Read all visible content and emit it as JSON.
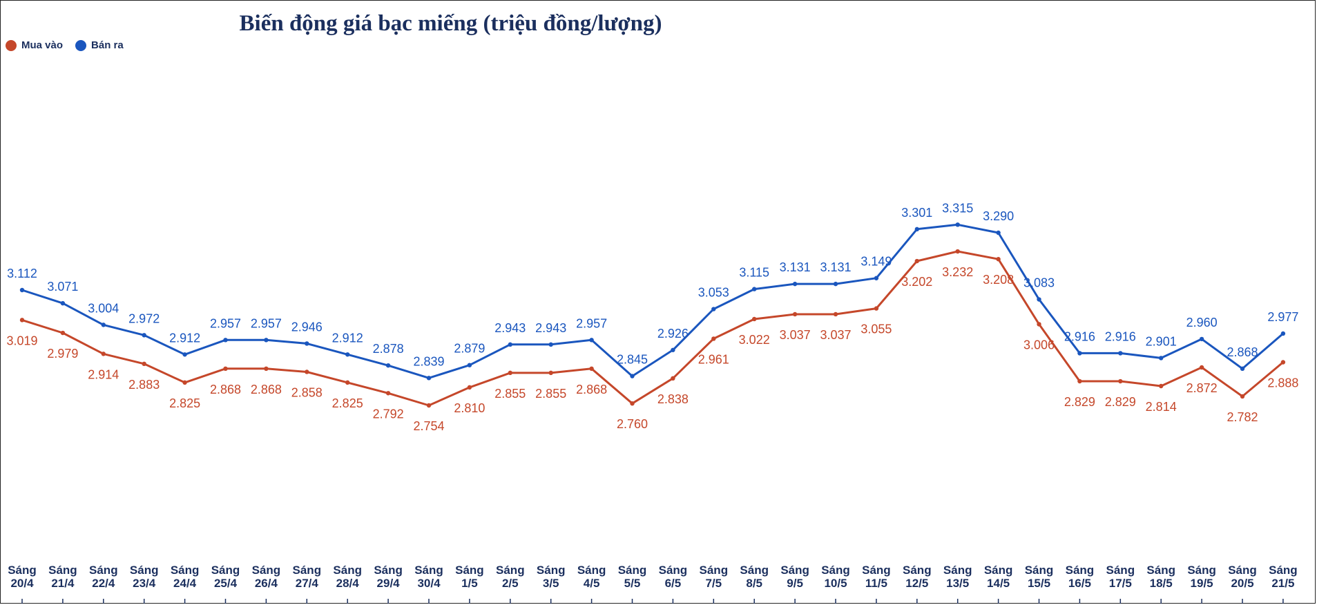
{
  "chart_data": {
    "type": "line",
    "title": "Biến động giá bạc miếng (triệu đồng/lượng)",
    "categories": [
      "Sáng|20/4",
      "Sáng|21/4",
      "Sáng|22/4",
      "Sáng|23/4",
      "Sáng|24/4",
      "Sáng|25/4",
      "Sáng|26/4",
      "Sáng|27/4",
      "Sáng|28/4",
      "Sáng|29/4",
      "Sáng|30/4",
      "Sáng|1/5",
      "Sáng|2/5",
      "Sáng|3/5",
      "Sáng|4/5",
      "Sáng|5/5",
      "Sáng|6/5",
      "Sáng|7/5",
      "Sáng|8/5",
      "Sáng|9/5",
      "Sáng|10/5",
      "Sáng|11/5",
      "Sáng|12/5",
      "Sáng|13/5",
      "Sáng|14/5",
      "Sáng|15/5",
      "Sáng|16/5",
      "Sáng|17/5",
      "Sáng|18/5",
      "Sáng|19/5",
      "Sáng|20/5",
      "Sáng|21/5"
    ],
    "series": [
      {
        "name": "Mua vào",
        "color": "#c5472a",
        "values": [
          3.019,
          2.979,
          2.914,
          2.883,
          2.825,
          2.868,
          2.868,
          2.858,
          2.825,
          2.792,
          2.754,
          2.81,
          2.855,
          2.855,
          2.868,
          2.76,
          2.838,
          2.961,
          3.022,
          3.037,
          3.037,
          3.055,
          3.202,
          3.232,
          3.208,
          3.006,
          2.829,
          2.829,
          2.814,
          2.872,
          2.782,
          2.888
        ],
        "labels": [
          "3.019",
          "2.979",
          "2.914",
          "2.883",
          "2.825",
          "2.868",
          "2.868",
          "2.858",
          "2.825",
          "2.792",
          "2.754",
          "2.810",
          "2.855",
          "2.855",
          "2.868",
          "2.760",
          "2.838",
          "2.961",
          "3.022",
          "3.037",
          "3.037",
          "3.055",
          "3.202",
          "3.232",
          "3.208",
          "3.006",
          "2.829",
          "2.829",
          "2.814",
          "2.872",
          "2.782",
          "2.888"
        ]
      },
      {
        "name": "Bán ra",
        "color": "#1a56be",
        "values": [
          3.112,
          3.071,
          3.004,
          2.972,
          2.912,
          2.957,
          2.957,
          2.946,
          2.912,
          2.878,
          2.839,
          2.879,
          2.943,
          2.943,
          2.957,
          2.845,
          2.926,
          3.053,
          3.115,
          3.131,
          3.131,
          3.149,
          3.301,
          3.315,
          3.29,
          3.083,
          2.916,
          2.916,
          2.901,
          2.96,
          2.868,
          2.977
        ],
        "labels": [
          "3.112",
          "3.071",
          "3.004",
          "2.972",
          "2.912",
          "2.957",
          "2.957",
          "2.946",
          "2.912",
          "2.878",
          "2.839",
          "2.879",
          "2.943",
          "2.943",
          "2.957",
          "2.845",
          "2.926",
          "3.053",
          "3.115",
          "3.131",
          "3.131",
          "3.149",
          "3.301",
          "3.315",
          "3.290",
          "3.083",
          "2.916",
          "2.916",
          "2.901",
          "2.960",
          "2.868",
          "2.977"
        ]
      }
    ],
    "legend_position": "top-left",
    "grid": false,
    "ylim": [
      2.66,
      3.4
    ]
  }
}
